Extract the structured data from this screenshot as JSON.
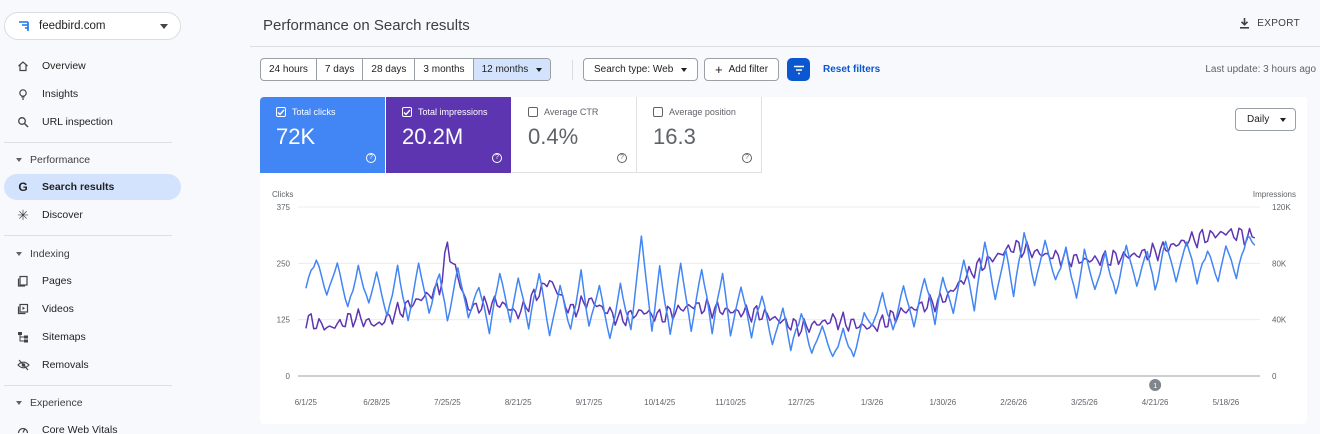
{
  "property": {
    "name": "feedbird.com",
    "icon": "property-logo-icon"
  },
  "sidebar": {
    "items": [
      {
        "label": "Overview",
        "icon": "home-icon"
      },
      {
        "label": "Insights",
        "icon": "lightbulb-icon"
      },
      {
        "label": "URL inspection",
        "icon": "search-icon"
      }
    ],
    "performance": {
      "label": "Performance",
      "items": [
        {
          "label": "Search results",
          "icon": "google-g-icon"
        },
        {
          "label": "Discover",
          "icon": "asterisk-icon"
        }
      ]
    },
    "indexing": {
      "label": "Indexing",
      "items": [
        {
          "label": "Pages",
          "icon": "pages-icon"
        },
        {
          "label": "Videos",
          "icon": "video-icon"
        },
        {
          "label": "Sitemaps",
          "icon": "sitemap-icon"
        },
        {
          "label": "Removals",
          "icon": "eye-off-icon"
        }
      ]
    },
    "experience": {
      "label": "Experience",
      "items": [
        {
          "label": "Core Web Vitals",
          "icon": "speedometer-icon"
        }
      ]
    }
  },
  "header": {
    "title": "Performance on Search results",
    "export_label": "EXPORT"
  },
  "filters": {
    "ranges": [
      "24 hours",
      "7 days",
      "28 days",
      "3 months",
      "12 months"
    ],
    "selected_range": "12 months",
    "search_type": "Search type: Web",
    "add_filter": "Add filter",
    "reset_filters": "Reset filters",
    "last_update": "Last update: 3 hours ago"
  },
  "metrics": {
    "clicks": {
      "label": "Total clicks",
      "value": "72K",
      "checked": true,
      "color": "#4285f4"
    },
    "impressions": {
      "label": "Total impressions",
      "value": "20.2M",
      "checked": true,
      "color": "#5e35b1"
    },
    "ctr": {
      "label": "Average CTR",
      "value": "0.4%",
      "checked": false
    },
    "position": {
      "label": "Average position",
      "value": "16.3",
      "checked": false
    }
  },
  "granularity": "Daily",
  "chart_data": {
    "type": "line",
    "left_axis": {
      "label": "Clicks",
      "ticks": [
        "0",
        "125",
        "250",
        "375"
      ],
      "ylim": [
        0,
        375
      ]
    },
    "right_axis": {
      "label": "Impressions",
      "ticks": [
        "0",
        "40K",
        "80K",
        "120K"
      ],
      "ylim": [
        0,
        120000
      ]
    },
    "x_ticks": [
      "6/1/25",
      "6/28/25",
      "7/25/25",
      "8/21/25",
      "9/17/25",
      "10/14/25",
      "11/10/25",
      "12/7/25",
      "1/3/26",
      "1/30/26",
      "2/26/26",
      "3/25/26",
      "4/21/26",
      "5/18/26"
    ],
    "annotation": {
      "label": "1",
      "x": "4/21/26"
    },
    "grid": true,
    "series": [
      {
        "name": "Clicks",
        "axis": "left",
        "color": "#4285f4",
        "keyframes": [
          [
            "6/1/25",
            200
          ],
          [
            "6/5/25",
            260
          ],
          [
            "6/9/25",
            180
          ],
          [
            "6/13/25",
            250
          ],
          [
            "6/17/25",
            150
          ],
          [
            "6/21/25",
            240
          ],
          [
            "6/25/25",
            160
          ],
          [
            "6/28/25",
            230
          ],
          [
            "7/2/25",
            130
          ],
          [
            "7/6/25",
            240
          ],
          [
            "7/10/25",
            120
          ],
          [
            "7/14/25",
            250
          ],
          [
            "7/18/25",
            140
          ],
          [
            "7/22/25",
            230
          ],
          [
            "7/25/25",
            120
          ],
          [
            "7/29/25",
            240
          ],
          [
            "8/2/25",
            130
          ],
          [
            "8/6/25",
            200
          ],
          [
            "8/10/25",
            100
          ],
          [
            "8/14/25",
            230
          ],
          [
            "8/18/25",
            120
          ],
          [
            "8/21/25",
            220
          ],
          [
            "8/25/25",
            110
          ],
          [
            "8/29/25",
            230
          ],
          [
            "9/2/25",
            90
          ],
          [
            "9/6/25",
            200
          ],
          [
            "9/10/25",
            100
          ],
          [
            "9/14/25",
            230
          ],
          [
            "9/17/25",
            110
          ],
          [
            "9/21/25",
            200
          ],
          [
            "9/25/25",
            80
          ],
          [
            "9/29/25",
            200
          ],
          [
            "10/3/25",
            100
          ],
          [
            "10/7/25",
            310
          ],
          [
            "10/11/25",
            100
          ],
          [
            "10/14/25",
            240
          ],
          [
            "10/18/25",
            90
          ],
          [
            "10/22/25",
            250
          ],
          [
            "10/26/25",
            100
          ],
          [
            "10/30/25",
            240
          ],
          [
            "11/3/25",
            100
          ],
          [
            "11/7/25",
            230
          ],
          [
            "11/10/25",
            90
          ],
          [
            "11/14/25",
            200
          ],
          [
            "11/18/25",
            90
          ],
          [
            "11/22/25",
            180
          ],
          [
            "11/26/25",
            70
          ],
          [
            "11/30/25",
            150
          ],
          [
            "12/3/25",
            60
          ],
          [
            "12/7/25",
            140
          ],
          [
            "12/11/25",
            50
          ],
          [
            "12/15/25",
            110
          ],
          [
            "12/19/25",
            40
          ],
          [
            "12/23/25",
            100
          ],
          [
            "12/27/25",
            40
          ],
          [
            "12/31/25",
            140
          ],
          [
            "1/3/26",
            110
          ],
          [
            "1/7/26",
            180
          ],
          [
            "1/11/26",
            100
          ],
          [
            "1/15/26",
            200
          ],
          [
            "1/19/26",
            110
          ],
          [
            "1/23/26",
            220
          ],
          [
            "1/27/26",
            120
          ],
          [
            "1/30/26",
            220
          ],
          [
            "2/3/26",
            140
          ],
          [
            "2/7/26",
            260
          ],
          [
            "2/11/26",
            150
          ],
          [
            "2/15/26",
            300
          ],
          [
            "2/19/26",
            170
          ],
          [
            "2/23/26",
            280
          ],
          [
            "2/26/26",
            180
          ],
          [
            "3/2/26",
            320
          ],
          [
            "3/6/26",
            200
          ],
          [
            "3/10/26",
            300
          ],
          [
            "3/14/26",
            210
          ],
          [
            "3/18/26",
            280
          ],
          [
            "3/22/26",
            170
          ],
          [
            "3/25/26",
            280
          ],
          [
            "3/29/26",
            190
          ],
          [
            "4/2/26",
            270
          ],
          [
            "4/6/26",
            180
          ],
          [
            "4/10/26",
            290
          ],
          [
            "4/14/26",
            200
          ],
          [
            "4/18/26",
            280
          ],
          [
            "4/21/26",
            190
          ],
          [
            "4/25/26",
            300
          ],
          [
            "4/29/26",
            210
          ],
          [
            "5/3/26",
            300
          ],
          [
            "5/7/26",
            210
          ],
          [
            "5/11/26",
            280
          ],
          [
            "5/15/26",
            210
          ],
          [
            "5/18/26",
            290
          ],
          [
            "5/22/26",
            220
          ],
          [
            "5/26/26",
            310
          ],
          [
            "5/29/26",
            290
          ]
        ]
      },
      {
        "name": "Impressions",
        "axis": "right",
        "color": "#5e35b1",
        "keyframes": [
          [
            "6/1/25",
            40000
          ],
          [
            "6/10/25",
            34000
          ],
          [
            "6/20/25",
            42000
          ],
          [
            "6/28/25",
            36000
          ],
          [
            "7/10/25",
            50000
          ],
          [
            "7/22/25",
            62000
          ],
          [
            "7/25/25",
            92000
          ],
          [
            "8/2/25",
            48000
          ],
          [
            "8/14/25",
            52000
          ],
          [
            "8/21/25",
            44000
          ],
          [
            "9/2/25",
            68000
          ],
          [
            "9/10/25",
            46000
          ],
          [
            "9/17/25",
            54000
          ],
          [
            "9/29/25",
            40000
          ],
          [
            "10/7/25",
            46000
          ],
          [
            "10/14/25",
            42000
          ],
          [
            "10/26/25",
            50000
          ],
          [
            "11/10/25",
            46000
          ],
          [
            "11/22/25",
            44000
          ],
          [
            "12/7/25",
            34000
          ],
          [
            "12/19/25",
            40000
          ],
          [
            "1/3/26",
            34000
          ],
          [
            "1/15/26",
            46000
          ],
          [
            "1/30/26",
            54000
          ],
          [
            "2/11/26",
            76000
          ],
          [
            "2/26/26",
            92000
          ],
          [
            "3/10/26",
            86000
          ],
          [
            "3/25/26",
            82000
          ],
          [
            "4/6/26",
            84000
          ],
          [
            "4/21/26",
            88000
          ],
          [
            "5/3/26",
            96000
          ],
          [
            "5/18/26",
            102000
          ],
          [
            "5/29/26",
            98000
          ]
        ]
      }
    ]
  }
}
